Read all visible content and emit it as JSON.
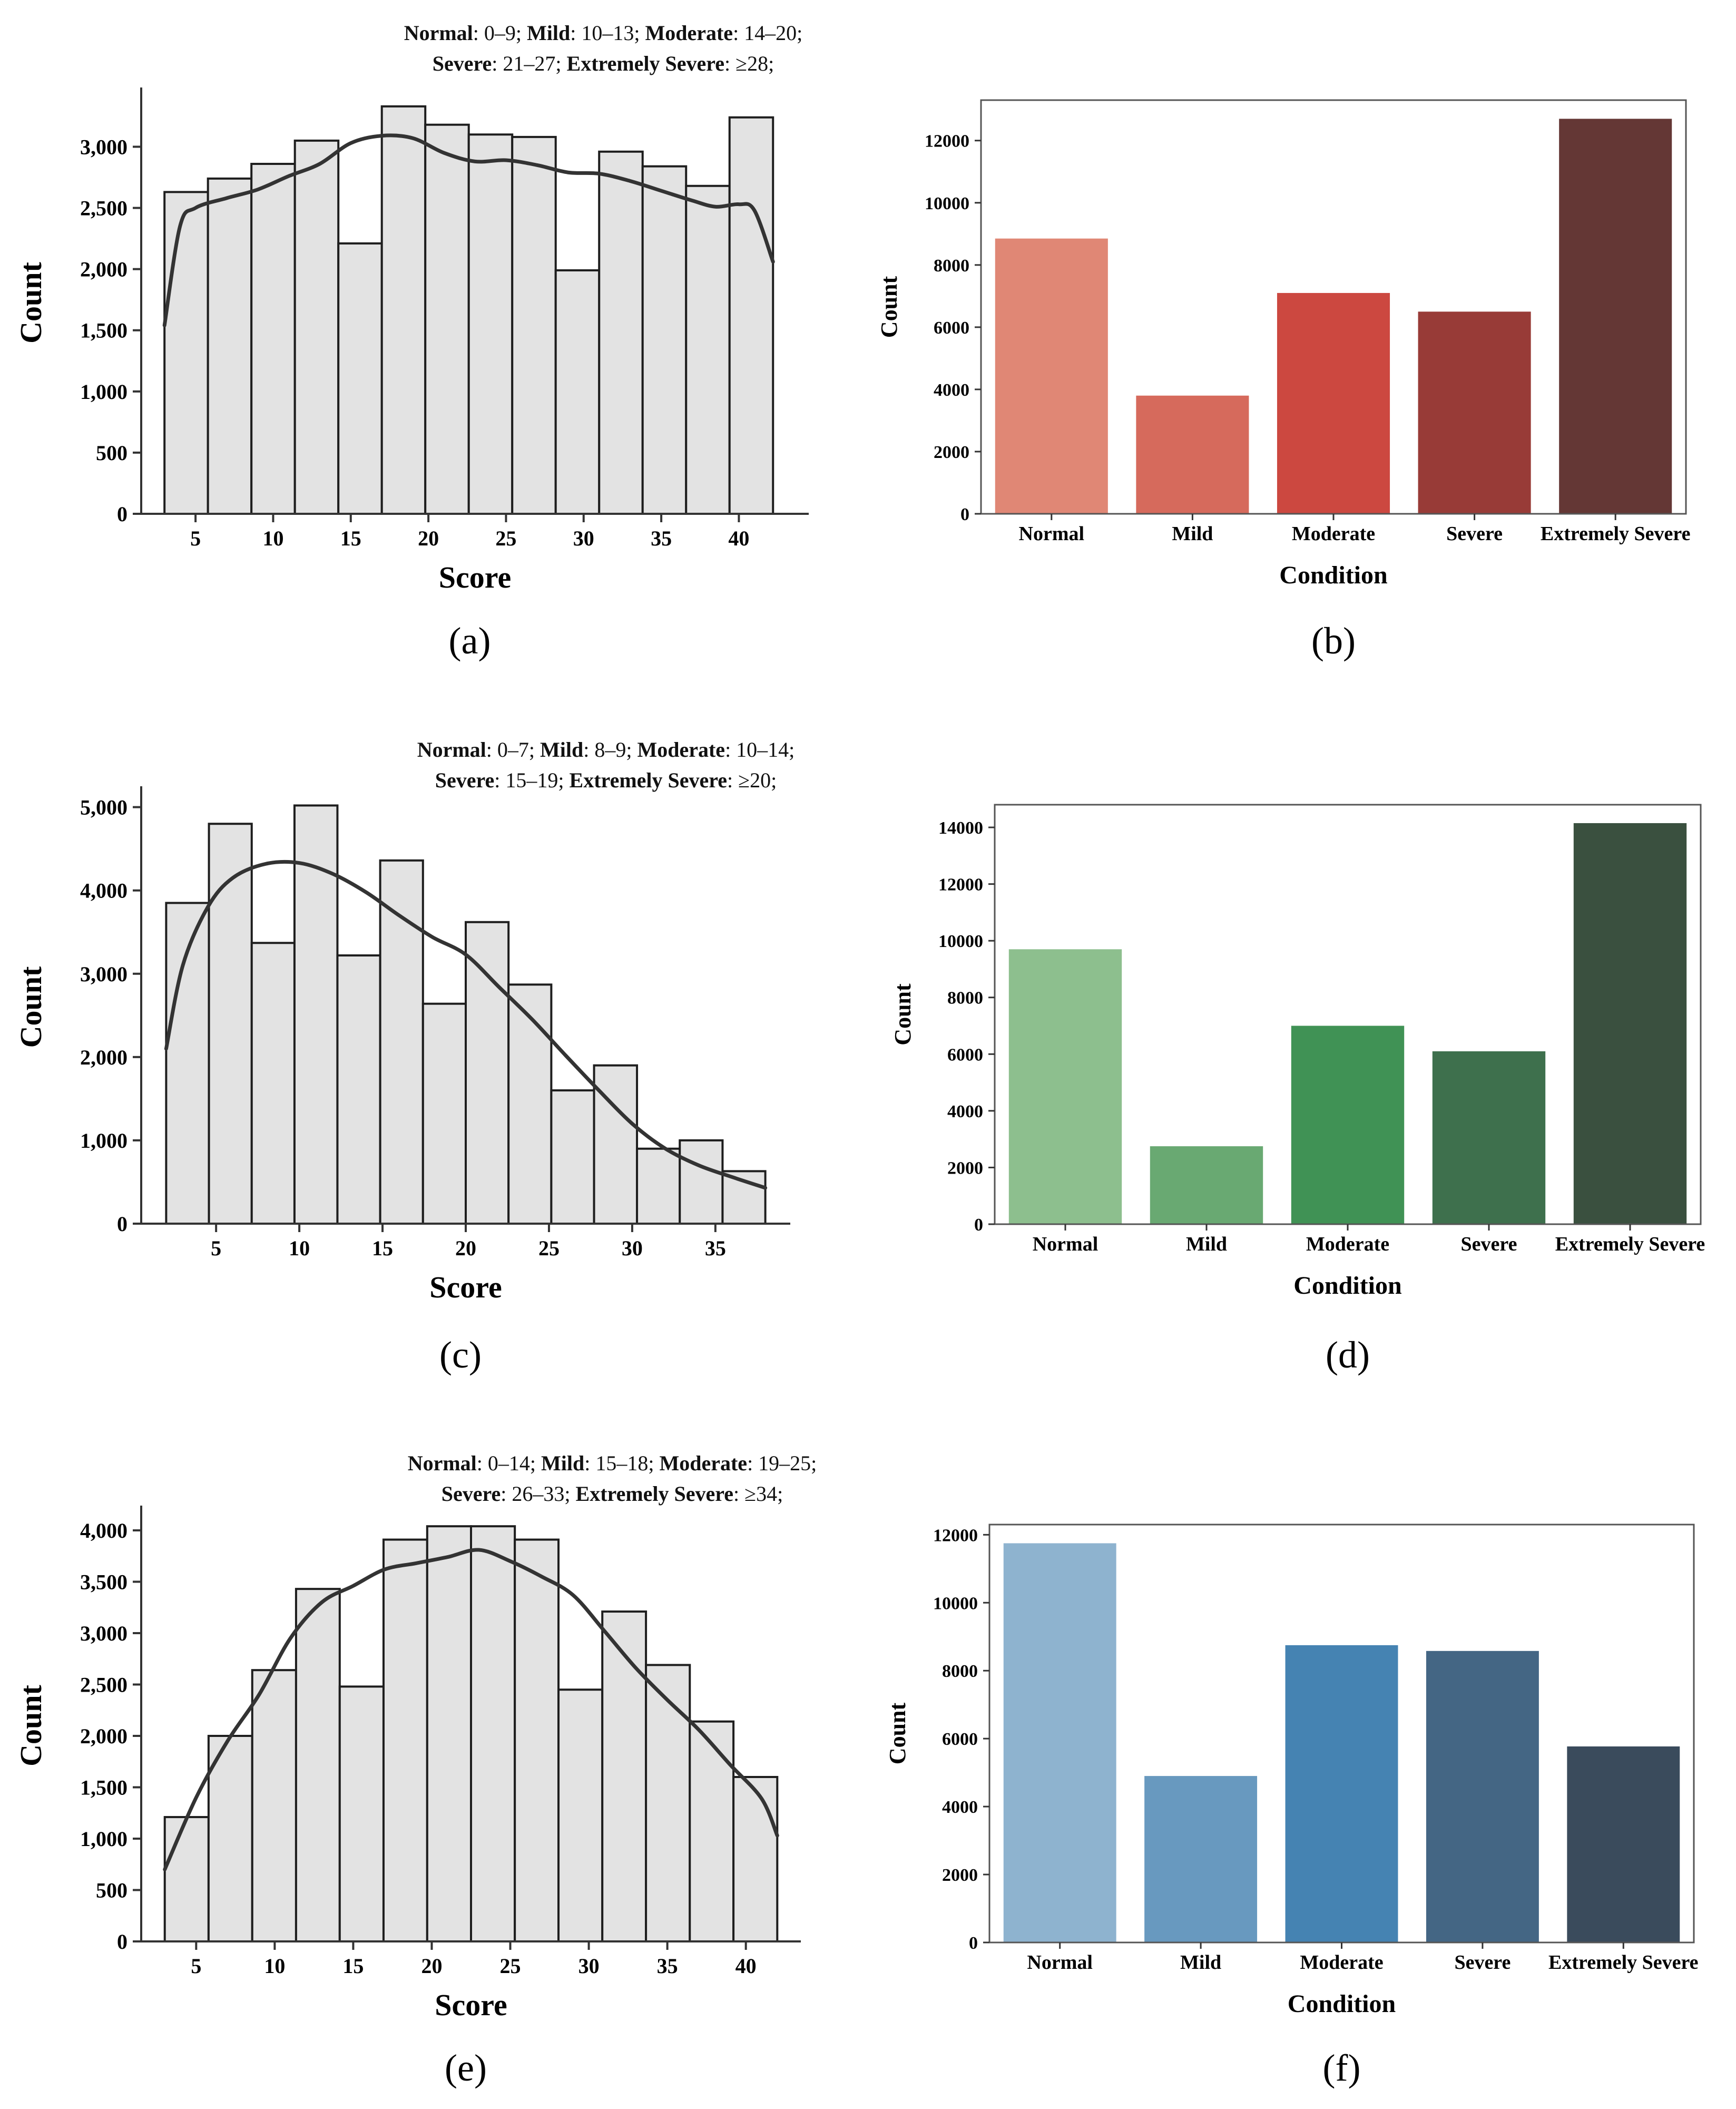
{
  "chart_data": [
    {
      "id": "a",
      "type": "bar",
      "subtype": "histogram-with-kde",
      "panel_label": "(a)",
      "title_line1": [
        "Normal",
        ": 0–9; ",
        "Mild",
        ": 10–13; ",
        "Moderate",
        ": 14–20;"
      ],
      "title_line2": [
        "Severe",
        ": 21–27; ",
        "Extremely Severe",
        ": ≥28;"
      ],
      "xlabel": "Score",
      "ylabel": "Count",
      "xlim": [
        1.5,
        44.5
      ],
      "ylim": [
        0,
        3450
      ],
      "xticks": [
        5,
        10,
        15,
        20,
        25,
        30,
        35,
        40
      ],
      "yticks": [
        0,
        500,
        1000,
        1500,
        2000,
        2500,
        3000
      ],
      "ytick_labels": [
        "0",
        "500",
        "1,000",
        "1,500",
        "2,000",
        "2,500",
        "3,000"
      ],
      "bin_edges": [
        3,
        5.8,
        8.6,
        11.4,
        14.2,
        17.0,
        19.8,
        22.6,
        25.4,
        28.2,
        31.0,
        33.8,
        36.6,
        39.4,
        42.2
      ],
      "values": [
        2630,
        2740,
        2860,
        3050,
        2210,
        3330,
        3180,
        3100,
        3080,
        1990,
        2960,
        2840,
        2680,
        3240
      ],
      "kde": {
        "x": [
          3,
          4,
          5,
          7,
          9,
          11,
          13,
          15,
          17,
          19,
          21,
          23,
          25,
          27,
          29,
          31,
          33,
          35,
          37,
          38.5,
          40,
          41,
          42.2
        ],
        "y": [
          1540,
          2350,
          2500,
          2580,
          2650,
          2760,
          2860,
          3030,
          3090,
          3070,
          2950,
          2880,
          2890,
          2850,
          2790,
          2780,
          2720,
          2640,
          2560,
          2510,
          2530,
          2480,
          2060
        ]
      }
    },
    {
      "id": "b",
      "type": "bar",
      "panel_label": "(b)",
      "xlabel": "Condition",
      "ylabel": "Count",
      "categories": [
        "Normal",
        "Mild",
        "Moderate",
        "Severe",
        "Extremely Severe"
      ],
      "values": [
        8850,
        3800,
        7100,
        6500,
        12700
      ],
      "colors": [
        "#e08775",
        "#d66a5c",
        "#cc4840",
        "#983b37",
        "#643735"
      ],
      "ylim": [
        0,
        13300
      ],
      "yticks": [
        0,
        2000,
        4000,
        6000,
        8000,
        10000,
        12000
      ],
      "ytick_labels": [
        "0",
        "2000",
        "4000",
        "6000",
        "8000",
        "10000",
        "12000"
      ]
    },
    {
      "id": "c",
      "type": "bar",
      "subtype": "histogram-with-kde",
      "panel_label": "(c)",
      "title_line1": [
        "Normal",
        ": 0–7; ",
        "Mild",
        ": 8–9; ",
        "Moderate",
        ": 10–14;"
      ],
      "title_line2": [
        "Severe",
        ": 15–19; ",
        "Extremely Severe",
        ": ≥20;"
      ],
      "xlabel": "Score",
      "ylabel": "Count",
      "xlim": [
        0.5,
        39.5
      ],
      "ylim": [
        0,
        5200
      ],
      "xticks": [
        5,
        10,
        15,
        20,
        25,
        30,
        35
      ],
      "yticks": [
        0,
        1000,
        2000,
        3000,
        4000,
        5000
      ],
      "ytick_labels": [
        "0",
        "1,000",
        "2,000",
        "3,000",
        "4,000",
        "5,000"
      ],
      "bin_edges": [
        2.0,
        4.57,
        7.14,
        9.71,
        12.29,
        14.86,
        17.43,
        20.0,
        22.57,
        25.14,
        27.71,
        30.29,
        32.86,
        35.43,
        38.0
      ],
      "values": [
        3850,
        4800,
        3370,
        5020,
        3220,
        4360,
        2640,
        3620,
        2870,
        1600,
        1900,
        900,
        1000,
        630
      ],
      "kde": {
        "x": [
          2,
          3,
          4.5,
          6,
          8,
          10,
          12,
          14,
          16,
          18,
          20,
          22,
          24,
          26,
          28,
          30,
          32,
          34,
          36,
          38
        ],
        "y": [
          2100,
          3100,
          3800,
          4150,
          4320,
          4330,
          4200,
          3980,
          3700,
          3440,
          3230,
          2840,
          2450,
          2020,
          1600,
          1200,
          900,
          700,
          560,
          430
        ]
      }
    },
    {
      "id": "d",
      "type": "bar",
      "panel_label": "(d)",
      "xlabel": "Condition",
      "ylabel": "Count",
      "categories": [
        "Normal",
        "Mild",
        "Moderate",
        "Severe",
        "Extremely Severe"
      ],
      "values": [
        9700,
        2750,
        7000,
        6100,
        14150
      ],
      "colors": [
        "#8dbf8e",
        "#69a972",
        "#409255",
        "#3e704d",
        "#3a503f"
      ],
      "ylim": [
        0,
        14800
      ],
      "yticks": [
        0,
        2000,
        4000,
        6000,
        8000,
        10000,
        12000,
        14000
      ],
      "ytick_labels": [
        "0",
        "2000",
        "4000",
        "6000",
        "8000",
        "10000",
        "12000",
        "14000"
      ]
    },
    {
      "id": "e",
      "type": "bar",
      "subtype": "histogram-with-kde",
      "panel_label": "(e)",
      "title_line1": [
        "Normal",
        ": 0–14; ",
        "Mild",
        ": 15–18; ",
        "Moderate",
        ": 19–25;"
      ],
      "title_line2": [
        "Severe",
        ": 26–33; ",
        "Extremely Severe",
        ": ≥34;"
      ],
      "xlabel": "Score",
      "ylabel": "Count",
      "xlim": [
        1.5,
        43.5
      ],
      "ylim": [
        0,
        4200
      ],
      "xticks": [
        5,
        10,
        15,
        20,
        25,
        30,
        35,
        40
      ],
      "yticks": [
        0,
        500,
        1000,
        1500,
        2000,
        2500,
        3000,
        3500,
        4000
      ],
      "ytick_labels": [
        "0",
        "500",
        "1,000",
        "1,500",
        "2,000",
        "2,500",
        "3,000",
        "3,500",
        "4,000"
      ],
      "bin_edges": [
        3,
        5.79,
        8.57,
        11.36,
        14.14,
        16.93,
        19.71,
        22.5,
        25.29,
        28.07,
        30.86,
        33.64,
        36.43,
        39.21,
        42.0
      ],
      "values": [
        1210,
        2000,
        2640,
        3430,
        2480,
        3910,
        4040,
        4040,
        3910,
        2450,
        3210,
        2690,
        2140,
        1600
      ],
      "kde": {
        "x": [
          3,
          5,
          7,
          9,
          11,
          13,
          15,
          17,
          19,
          21,
          23,
          25,
          27,
          29,
          31,
          33,
          35,
          37,
          39,
          41,
          42
        ],
        "y": [
          700,
          1400,
          1950,
          2400,
          2950,
          3300,
          3460,
          3620,
          3680,
          3740,
          3810,
          3700,
          3550,
          3370,
          3020,
          2660,
          2350,
          2060,
          1720,
          1390,
          1030
        ]
      }
    },
    {
      "id": "f",
      "type": "bar",
      "panel_label": "(f)",
      "xlabel": "Condition",
      "ylabel": "Count",
      "categories": [
        "Normal",
        "Mild",
        "Moderate",
        "Severe",
        "Extremely Severe"
      ],
      "values": [
        11750,
        4900,
        8750,
        8580,
        5770
      ],
      "colors": [
        "#8eb3cf",
        "#6899bf",
        "#4583b2",
        "#446684",
        "#3a4b5c"
      ],
      "ylim": [
        0,
        12300
      ],
      "yticks": [
        0,
        2000,
        4000,
        6000,
        8000,
        10000,
        12000
      ],
      "ytick_labels": [
        "0",
        "2000",
        "4000",
        "6000",
        "8000",
        "10000",
        "12000"
      ]
    }
  ]
}
